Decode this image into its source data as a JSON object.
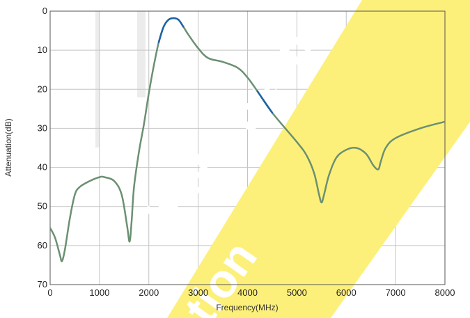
{
  "chart_data": {
    "type": "line",
    "title": "",
    "xlabel": "Frequency(MHz)",
    "ylabel": "Attenuation(dB)",
    "xlim": [
      0,
      8000
    ],
    "ylim": [
      0,
      70
    ],
    "y_inverted": true,
    "x_ticks": [
      0,
      1000,
      2000,
      3000,
      4000,
      5000,
      6000,
      7000,
      8000
    ],
    "y_ticks": [
      0,
      10,
      20,
      30,
      40,
      50,
      60,
      70
    ],
    "grid": true,
    "series": [
      {
        "color": "#6b9072",
        "highlight_color": "#1e62a8",
        "x": [
          0,
          100,
          200,
          240,
          300,
          400,
          500,
          600,
          800,
          1000,
          1100,
          1300,
          1450,
          1560,
          1610,
          1650,
          1700,
          1800,
          1900,
          2000,
          2100,
          2200,
          2300,
          2400,
          2500,
          2600,
          2700,
          2800,
          3000,
          3200,
          3500,
          3800,
          4000,
          4200,
          4500,
          5000,
          5200,
          5350,
          5450,
          5500,
          5550,
          5650,
          5800,
          6000,
          6200,
          6400,
          6550,
          6650,
          6700,
          6800,
          7000,
          7500,
          8000
        ],
        "y": [
          55.5,
          58,
          62.5,
          64,
          61,
          53,
          47,
          45,
          43.5,
          42.5,
          42.5,
          43.5,
          47,
          55,
          59,
          54,
          45,
          36,
          29,
          21,
          14,
          8,
          4,
          2.2,
          1.8,
          2.2,
          4,
          6,
          9.5,
          12,
          13,
          14.5,
          17,
          20.5,
          26,
          33.5,
          37,
          41.5,
          47,
          49,
          47,
          42,
          37.5,
          35.5,
          35,
          36.5,
          39.5,
          40.5,
          38.5,
          35,
          32.5,
          30,
          28.3
        ],
        "highlight_ranges": [
          [
            2150,
            2700
          ],
          [
            4200,
            4500
          ]
        ]
      }
    ]
  },
  "watermark": {
    "band_color": "#fdf07a",
    "text_color": "#ffffff"
  }
}
